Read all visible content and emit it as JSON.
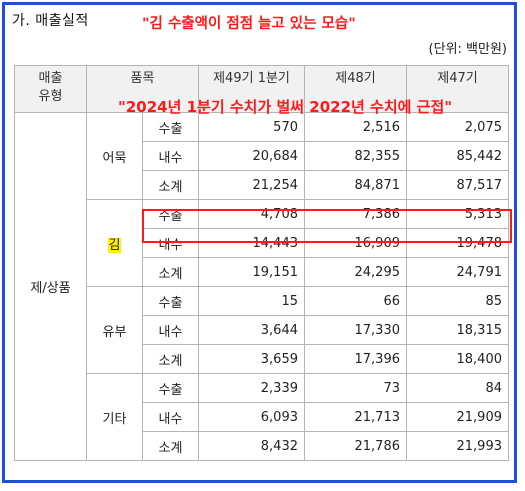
{
  "section_title": "가. 매출실적",
  "annotation_top": "\"김 수출액이 점점 늘고 있는 모습\"",
  "annotation_mid": "\"2024년 1분기 수치가 벌써 2022년 수치에 근접\"",
  "unit": "(단위: 백만원)",
  "headers": {
    "type_line1": "매출",
    "type_line2": "유형",
    "item": "품목",
    "col1": "제49기 1분기",
    "col2": "제48기",
    "col3": "제47기"
  },
  "type_label": "제/상품",
  "colors": {
    "frame": "#1f4fd6",
    "annotation": "#ff1a1a",
    "highlight": "#fff200"
  },
  "groups": [
    {
      "name": "어묵",
      "rows": [
        {
          "label": "수출",
          "v": [
            "570",
            "2,516",
            "2,075"
          ]
        },
        {
          "label": "내수",
          "v": [
            "20,684",
            "82,355",
            "85,442"
          ]
        },
        {
          "label": "소계",
          "v": [
            "21,254",
            "84,871",
            "87,517"
          ]
        }
      ]
    },
    {
      "name": "김",
      "rows": [
        {
          "label": "수출",
          "v": [
            "4,708",
            "7,386",
            "5,313"
          ]
        },
        {
          "label": "내수",
          "v": [
            "14,443",
            "16,909",
            "19,478"
          ]
        },
        {
          "label": "소계",
          "v": [
            "19,151",
            "24,295",
            "24,791"
          ]
        }
      ]
    },
    {
      "name": "유부",
      "rows": [
        {
          "label": "수출",
          "v": [
            "15",
            "66",
            "85"
          ]
        },
        {
          "label": "내수",
          "v": [
            "3,644",
            "17,330",
            "18,315"
          ]
        },
        {
          "label": "소계",
          "v": [
            "3,659",
            "17,396",
            "18,400"
          ]
        }
      ]
    },
    {
      "name": "기타",
      "rows": [
        {
          "label": "수출",
          "v": [
            "2,339",
            "73",
            "84"
          ]
        },
        {
          "label": "내수",
          "v": [
            "6,093",
            "21,713",
            "21,909"
          ]
        },
        {
          "label": "소계",
          "v": [
            "8,432",
            "21,786",
            "21,993"
          ]
        }
      ]
    }
  ]
}
